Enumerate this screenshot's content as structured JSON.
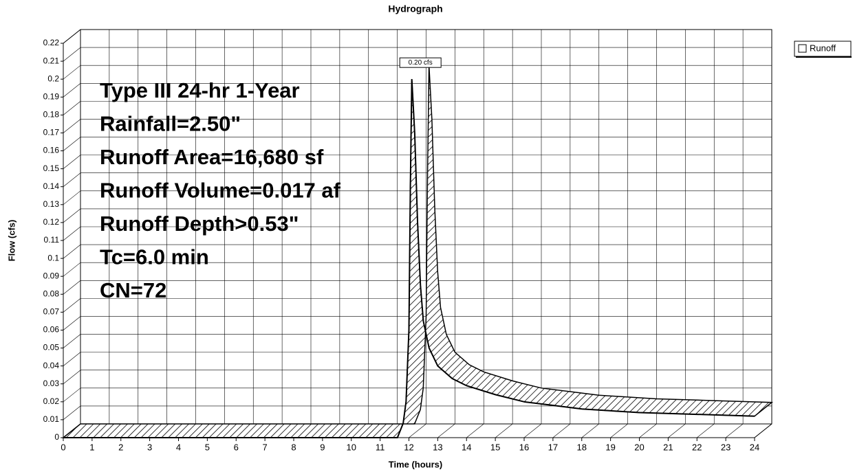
{
  "chart_data": {
    "type": "line",
    "title": "Hydrograph",
    "xlabel": "Time  (hours)",
    "ylabel": "Flow  (cfs)",
    "x": [
      0,
      11.6,
      11.8,
      11.9,
      12.0,
      12.05,
      12.1,
      12.2,
      12.3,
      12.4,
      12.5,
      12.7,
      13.0,
      13.5,
      14,
      15,
      16,
      17,
      18,
      20,
      22,
      24
    ],
    "series": [
      {
        "name": "Runoff",
        "color": "#000000",
        "values": [
          0,
          0,
          0.008,
          0.02,
          0.06,
          0.14,
          0.2,
          0.17,
          0.12,
          0.085,
          0.065,
          0.05,
          0.04,
          0.033,
          0.029,
          0.024,
          0.02,
          0.018,
          0.016,
          0.014,
          0.013,
          0.012
        ]
      }
    ],
    "peak_label": "0.20 cfs",
    "annotations": [
      "Type III 24-hr 1-Year",
      "Rainfall=2.50\"",
      "Runoff Area=16,680 sf",
      "Runoff Volume=0.017 af",
      "Runoff Depth>0.53\"",
      "Tc=6.0 min",
      "CN=72"
    ],
    "xlim": [
      0,
      24
    ],
    "xticks": [
      0,
      1,
      2,
      3,
      4,
      5,
      6,
      7,
      8,
      9,
      10,
      11,
      12,
      13,
      14,
      15,
      16,
      17,
      18,
      19,
      20,
      21,
      22,
      23,
      24
    ],
    "ylim": [
      0,
      0.22
    ],
    "yticks": [
      0,
      0.01,
      0.02,
      0.03,
      0.04,
      0.05,
      0.06,
      0.07,
      0.08,
      0.09,
      0.1,
      0.11,
      0.12,
      0.13,
      0.14,
      0.15,
      0.16,
      0.17,
      0.18,
      0.19,
      0.2,
      0.21,
      0.22
    ],
    "grid": true,
    "legend": "upper right"
  }
}
